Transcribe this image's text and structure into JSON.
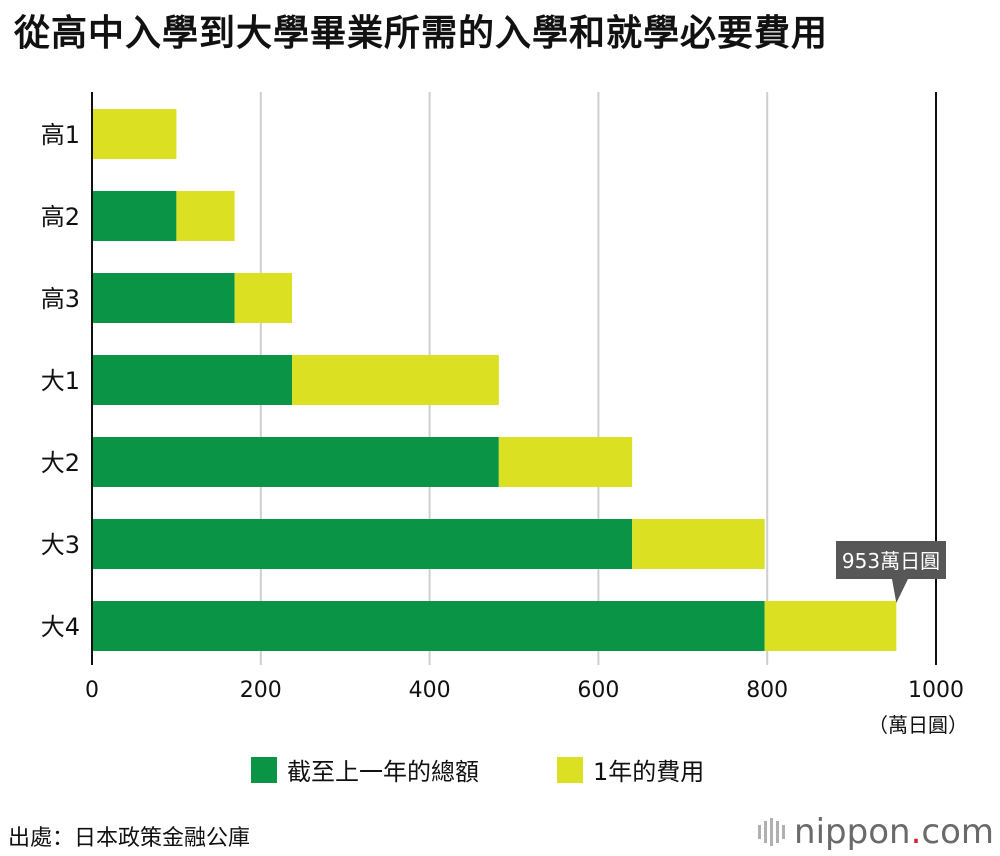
{
  "title": "從高中入學到大學畢業所需的入學和就學必要費用",
  "chart_data": {
    "type": "bar",
    "orientation": "horizontal",
    "stacked": true,
    "categories": [
      "高1",
      "高2",
      "高3",
      "大1",
      "大2",
      "大3",
      "大4"
    ],
    "series": [
      {
        "name": "截至上一年的總額",
        "color": "#0a9546",
        "values": [
          0,
          100,
          169,
          237,
          482,
          640,
          797
        ]
      },
      {
        "name": "1年的費用",
        "color": "#dbe022",
        "values": [
          100,
          69,
          68,
          245,
          158,
          157,
          156
        ]
      }
    ],
    "xlim": [
      0,
      1000
    ],
    "x_ticks": [
      "0",
      "200",
      "400",
      "600",
      "800",
      "1000"
    ],
    "unit_label": "（萬日圓）",
    "grid": true,
    "annotation": {
      "text": "953萬日圓",
      "category": "大4",
      "value": 953
    },
    "legend_position": "bottom"
  },
  "source": "出處：日本政策金融公庫",
  "logo": {
    "text": "nippon",
    "dot": ".",
    "suffix": "com"
  }
}
